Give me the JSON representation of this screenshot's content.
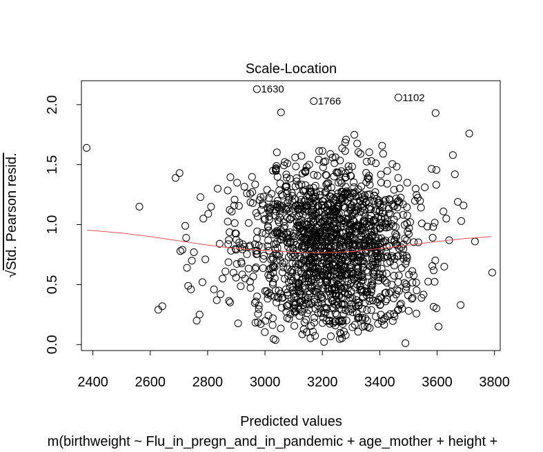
{
  "chart_data": {
    "type": "scatter",
    "title": "Scale-Location",
    "xlabel": "Predicted values",
    "ylabel": "√Std. Pearson resid.",
    "ylabel_parts": {
      "radical": "√",
      "text": "Std. Pearson resid."
    },
    "subtitle": "m(birthweight ~ Flu_in_pregn_and_in_pandemic + age_mother + height +",
    "xlim": [
      2360,
      3820
    ],
    "ylim": [
      -0.05,
      2.2
    ],
    "xticks": [
      2400,
      2600,
      2800,
      3000,
      3200,
      3400,
      3600,
      3800
    ],
    "yticks": [
      0.0,
      0.5,
      1.0,
      1.5,
      2.0
    ],
    "xtick_labels": [
      "2400",
      "2600",
      "2800",
      "3000",
      "3200",
      "3400",
      "3600",
      "3800"
    ],
    "ytick_labels": [
      "0.0",
      "0.5",
      "1.0",
      "1.5",
      "2.0"
    ],
    "grid": false,
    "point_style": "open-circle",
    "n_points_approx": 1600,
    "annotated_points": [
      {
        "label": "1630",
        "x": 2972,
        "y": 2.13
      },
      {
        "label": "1766",
        "x": 3170,
        "y": 2.03
      },
      {
        "label": "1102",
        "x": 3465,
        "y": 2.06
      }
    ],
    "outer_points": [
      [
        2378,
        1.64
      ],
      [
        2562,
        1.15
      ],
      [
        2628,
        0.29
      ],
      [
        2642,
        0.32
      ],
      [
        2688,
        1.39
      ],
      [
        2702,
        1.43
      ],
      [
        2705,
        0.78
      ],
      [
        2712,
        0.79
      ],
      [
        2722,
        0.99
      ],
      [
        2725,
        0.89
      ],
      [
        2728,
        0.64
      ],
      [
        2732,
        0.49
      ],
      [
        2742,
        0.46
      ],
      [
        2745,
        0.7
      ],
      [
        2752,
        0.77
      ],
      [
        2762,
        0.2
      ],
      [
        2772,
        0.25
      ],
      [
        2775,
        1.23
      ],
      [
        2782,
        0.52
      ],
      [
        2785,
        1.05
      ],
      [
        2792,
        0.71
      ],
      [
        2802,
        1.09
      ],
      [
        2812,
        1.15
      ],
      [
        2822,
        0.46
      ],
      [
        2832,
        0.37
      ],
      [
        2835,
        1.3
      ],
      [
        2842,
        0.84
      ],
      [
        2845,
        0.42
      ],
      [
        2852,
        0.55
      ],
      [
        2862,
        0.61
      ],
      [
        3605,
        0.15
      ],
      [
        3622,
        1.11
      ],
      [
        3625,
        0.65
      ],
      [
        3632,
        1.05
      ],
      [
        3642,
        0.87
      ],
      [
        3655,
        1.58
      ],
      [
        3662,
        1.42
      ],
      [
        3672,
        1.19
      ],
      [
        3682,
        0.33
      ],
      [
        3684,
        1.03
      ],
      [
        3692,
        1.16
      ],
      [
        3712,
        1.76
      ],
      [
        3732,
        0.86
      ],
      [
        3792,
        0.6
      ]
    ],
    "smoother": {
      "color": "#e8534f",
      "x": [
        2380,
        2500,
        2600,
        2700,
        2800,
        2900,
        3000,
        3100,
        3200,
        3300,
        3400,
        3500,
        3600,
        3700,
        3790
      ],
      "y": [
        0.955,
        0.93,
        0.9,
        0.865,
        0.83,
        0.8,
        0.785,
        0.77,
        0.765,
        0.775,
        0.8,
        0.83,
        0.86,
        0.885,
        0.9
      ]
    }
  }
}
